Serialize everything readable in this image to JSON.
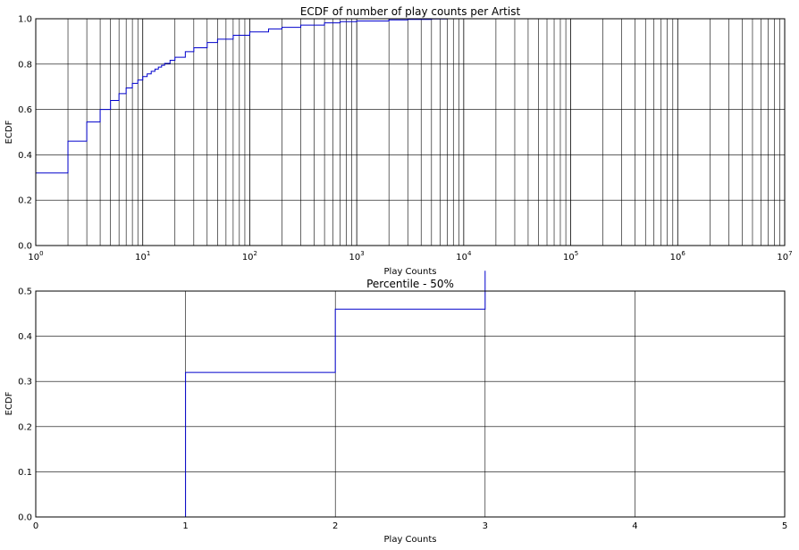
{
  "chart_data": [
    {
      "type": "line",
      "title": "ECDF of number of play counts per Artist",
      "xlabel": "Play Counts",
      "ylabel": "ECDF",
      "xscale": "log",
      "xlim": [
        1,
        10000000
      ],
      "ylim": [
        0,
        1.0
      ],
      "grid": true,
      "x_tick_labels": [
        {
          "base": "10",
          "exp": "0"
        },
        {
          "base": "10",
          "exp": "1"
        },
        {
          "base": "10",
          "exp": "2"
        },
        {
          "base": "10",
          "exp": "3"
        },
        {
          "base": "10",
          "exp": "4"
        },
        {
          "base": "10",
          "exp": "5"
        },
        {
          "base": "10",
          "exp": "6"
        },
        {
          "base": "10",
          "exp": "7"
        }
      ],
      "y_tick_labels": [
        "0.0",
        "0.2",
        "0.4",
        "0.6",
        "0.8",
        "1.0"
      ],
      "series": [
        {
          "color": "#0000cc",
          "x": [
            1,
            2,
            3,
            4,
            5,
            6,
            7,
            8,
            9,
            10,
            11,
            12,
            13,
            14,
            15,
            16,
            18,
            20,
            25,
            30,
            40,
            50,
            70,
            100,
            150,
            200,
            300,
            500,
            700,
            1000,
            2000,
            3000,
            5000,
            7000
          ],
          "y": [
            0.32,
            0.46,
            0.545,
            0.6,
            0.64,
            0.67,
            0.695,
            0.715,
            0.73,
            0.745,
            0.757,
            0.768,
            0.778,
            0.787,
            0.795,
            0.803,
            0.817,
            0.83,
            0.855,
            0.872,
            0.895,
            0.91,
            0.927,
            0.942,
            0.955,
            0.962,
            0.972,
            0.982,
            0.987,
            0.99,
            0.995,
            0.997,
            0.999,
            1.0
          ]
        }
      ]
    },
    {
      "type": "line",
      "title": "Percentile - 50%",
      "xlabel": "Play Counts",
      "ylabel": "ECDF",
      "xlim": [
        0,
        5
      ],
      "ylim": [
        0,
        0.5
      ],
      "grid": true,
      "x_tick_labels": [
        "0",
        "1",
        "2",
        "3",
        "4",
        "5"
      ],
      "y_tick_labels": [
        "0.0",
        "0.1",
        "0.2",
        "0.3",
        "0.4",
        "0.5"
      ],
      "series": [
        {
          "color": "#0000cc",
          "x": [
            1,
            2,
            3
          ],
          "y": [
            0.32,
            0.46,
            0.545
          ]
        }
      ]
    }
  ]
}
